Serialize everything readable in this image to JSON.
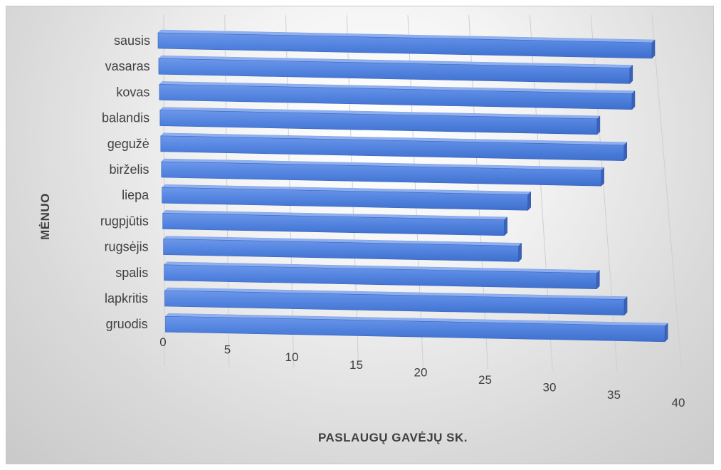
{
  "chart_data": {
    "type": "bar",
    "orientation": "horizontal",
    "perspective_3d": true,
    "categories": [
      "sausis",
      "vasaras",
      "kovas",
      "balandis",
      "gegužė",
      "birželis",
      "liepa",
      "rugpjūtis",
      "rugsėjis",
      "spalis",
      "lapkritis",
      "gruodis"
    ],
    "values": [
      40,
      38,
      38,
      35,
      37,
      35,
      29,
      27,
      28,
      34,
      36,
      39
    ],
    "x_ticks": [
      "0",
      "5",
      "10",
      "15",
      "20",
      "25",
      "30",
      "35",
      "40"
    ],
    "xlim": [
      0,
      40
    ],
    "xlabel": "PASLAUGŲ GAVĖJŲ SK.",
    "ylabel": "MĖNUO",
    "grid": true,
    "bar_color": "#4f7fd9"
  }
}
